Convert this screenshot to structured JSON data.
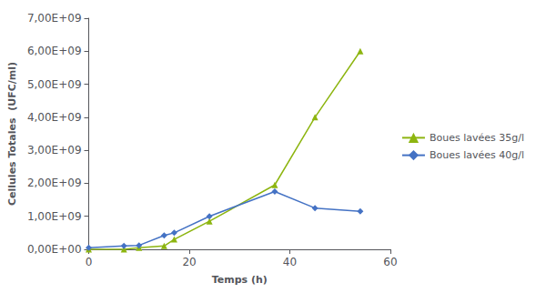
{
  "chart_data": {
    "type": "line",
    "x_label": "Temps (h)",
    "y_label": "Cellules Totales  (UFC/ml)",
    "x": [
      0,
      7,
      10,
      15,
      17,
      24,
      37,
      45,
      54
    ],
    "series": [
      {
        "name": "Boues lavées 35g/l",
        "color": "#8db510",
        "marker": "triangle",
        "line_style": "solid",
        "values": [
          0,
          0,
          50000000,
          100000000,
          300000000,
          850000000,
          1950000000,
          4000000000,
          6000000000
        ]
      },
      {
        "name": "Boues lavées 40g/l",
        "color": "#4472c4",
        "marker": "diamond",
        "line_style": "solid",
        "values": [
          50000000,
          100000000,
          120000000,
          420000000,
          500000000,
          1000000000,
          1750000000,
          1250000000,
          1150000000
        ]
      }
    ],
    "xlim": [
      0,
      60
    ],
    "xticks": [
      0,
      20,
      40,
      60
    ],
    "ylim": [
      0,
      7000000000
    ],
    "yticks": [
      {
        "value": 0,
        "label": "0,00E+00"
      },
      {
        "value": 1000000000,
        "label": "1,00E+09"
      },
      {
        "value": 2000000000,
        "label": "2,00E+09"
      },
      {
        "value": 3000000000,
        "label": "3,00E+09"
      },
      {
        "value": 4000000000,
        "label": "4,00E+09"
      },
      {
        "value": 5000000000,
        "label": "5,00E+09"
      },
      {
        "value": 6000000000,
        "label": "6,00E+09"
      },
      {
        "value": 7000000000,
        "label": "7,00E+09"
      }
    ],
    "grid": false,
    "legend": "right"
  }
}
